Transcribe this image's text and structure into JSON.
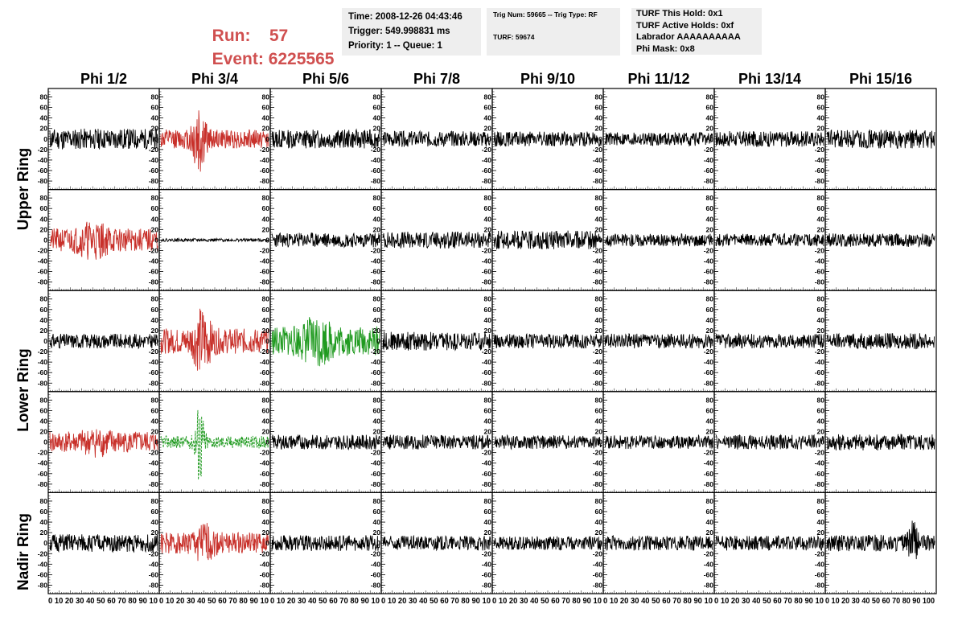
{
  "header": {
    "run_label": "Run:",
    "run_value": "57",
    "event_label": "Event:",
    "event_value": "6225565"
  },
  "info_boxes": {
    "time": "Time: 2008-12-26 04:43:46",
    "trigger": "Trigger: 549.998831 ms",
    "priority": "Priority: 1 -- Queue: 1",
    "trig_num": "Trig Num: 59665 -- Trig Type: RF",
    "turf": "TURF: 59674",
    "turf_this_hold": "TURF This Hold: 0x1",
    "turf_active_holds": "TURF Active Holds: 0xf",
    "labrador": "Labrador AAAAAAAAAA",
    "phi_mask": "Phi Mask: 0x8"
  },
  "colors": {
    "header_red": "#d05050",
    "trace_black": "#000000",
    "trace_red": "#c8302a",
    "trace_green": "#1f9a1f",
    "info_bg": "#eeeeee"
  },
  "chart_data": {
    "type": "line",
    "description_note": "",
    "columns": [
      "Phi 1/2",
      "Phi 3/4",
      "Phi 5/6",
      "Phi 7/8",
      "Phi 9/10",
      "Phi 11/12",
      "Phi 13/14",
      "Phi 15/16"
    ],
    "ring_labels": [
      "Upper Ring",
      "Lower Ring",
      "Nadir Ring"
    ],
    "rows": 5,
    "ylim": [
      -90,
      90
    ],
    "y_ticks": [
      80,
      60,
      40,
      20,
      0,
      -20,
      -40,
      -60,
      -80
    ],
    "xlim": [
      0,
      100
    ],
    "x_ticks": [
      0,
      10,
      20,
      30,
      40,
      50,
      60,
      70,
      80,
      90,
      100
    ],
    "x_tick_label_groups": [
      "0 10 20 30 40 50 60 70 80 90 10",
      "0 10 20 30 40 50 60 70 80 90 10",
      "0 10 20 30 40 50 60 70 80 90 10",
      "0 10 20 30 40 50 60 70 80 90 10",
      "0 10 20 30 40 50 60 70 80 90 10",
      "0 10 20 30 40 50 60 70 80 90 10",
      "0 10 20 30 40 50 60 70 80 90 10",
      "0 10 20 30 40 50 60 70 80 90 100"
    ],
    "panels": [
      [
        {
          "color": "black",
          "amp": 20,
          "seed": 11
        },
        {
          "color": "red",
          "amp": 18,
          "seed": 12,
          "burst": {
            "center": 35,
            "width": 6,
            "peak": 88
          }
        },
        {
          "color": "black",
          "amp": 18,
          "seed": 13
        },
        {
          "color": "black",
          "amp": 15,
          "seed": 14
        },
        {
          "color": "black",
          "amp": 14,
          "seed": 15
        },
        {
          "color": "black",
          "amp": 13,
          "seed": 16
        },
        {
          "color": "black",
          "amp": 15,
          "seed": 17
        },
        {
          "color": "black",
          "amp": 18,
          "seed": 18
        }
      ],
      [
        {
          "color": "red",
          "amp": 22,
          "seed": 21,
          "burst": {
            "center": 40,
            "width": 14,
            "peak": 40
          }
        },
        {
          "color": "black",
          "amp": 3,
          "seed": 22
        },
        {
          "color": "black",
          "amp": 14,
          "seed": 23
        },
        {
          "color": "black",
          "amp": 16,
          "seed": 24
        },
        {
          "color": "black",
          "amp": 18,
          "seed": 25
        },
        {
          "color": "black",
          "amp": 12,
          "seed": 26
        },
        {
          "color": "black",
          "amp": 12,
          "seed": 27
        },
        {
          "color": "black",
          "amp": 13,
          "seed": 28
        }
      ],
      [
        {
          "color": "black",
          "amp": 14,
          "seed": 31
        },
        {
          "color": "red",
          "amp": 24,
          "seed": 32,
          "burst": {
            "center": 38,
            "width": 8,
            "peak": 68
          }
        },
        {
          "color": "green",
          "amp": 28,
          "seed": 33,
          "burst": {
            "center": 42,
            "width": 14,
            "peak": 52
          }
        },
        {
          "color": "black",
          "amp": 18,
          "seed": 34
        },
        {
          "color": "black",
          "amp": 14,
          "seed": 35
        },
        {
          "color": "black",
          "amp": 14,
          "seed": 36
        },
        {
          "color": "black",
          "amp": 14,
          "seed": 37
        },
        {
          "color": "black",
          "amp": 15,
          "seed": 38
        }
      ],
      [
        {
          "color": "red",
          "amp": 20,
          "seed": 41,
          "burst": {
            "center": 45,
            "width": 14,
            "peak": 30
          }
        },
        {
          "color": "green",
          "amp": 12,
          "seed": 42,
          "dashed": true,
          "burst": {
            "center": 36,
            "width": 4,
            "peak": 88
          }
        },
        {
          "color": "black",
          "amp": 14,
          "seed": 43
        },
        {
          "color": "black",
          "amp": 14,
          "seed": 44
        },
        {
          "color": "black",
          "amp": 13,
          "seed": 45
        },
        {
          "color": "black",
          "amp": 13,
          "seed": 46
        },
        {
          "color": "black",
          "amp": 14,
          "seed": 47
        },
        {
          "color": "black",
          "amp": 16,
          "seed": 48
        }
      ],
      [
        {
          "color": "black",
          "amp": 17,
          "seed": 51
        },
        {
          "color": "red",
          "amp": 20,
          "seed": 52,
          "burst": {
            "center": 40,
            "width": 10,
            "peak": 40
          }
        },
        {
          "color": "black",
          "amp": 15,
          "seed": 53
        },
        {
          "color": "black",
          "amp": 14,
          "seed": 54
        },
        {
          "color": "black",
          "amp": 13,
          "seed": 55
        },
        {
          "color": "black",
          "amp": 14,
          "seed": 56
        },
        {
          "color": "black",
          "amp": 14,
          "seed": 57
        },
        {
          "color": "black",
          "amp": 16,
          "seed": 58,
          "burst": {
            "center": 80,
            "width": 4,
            "peak": 45
          }
        }
      ]
    ]
  }
}
